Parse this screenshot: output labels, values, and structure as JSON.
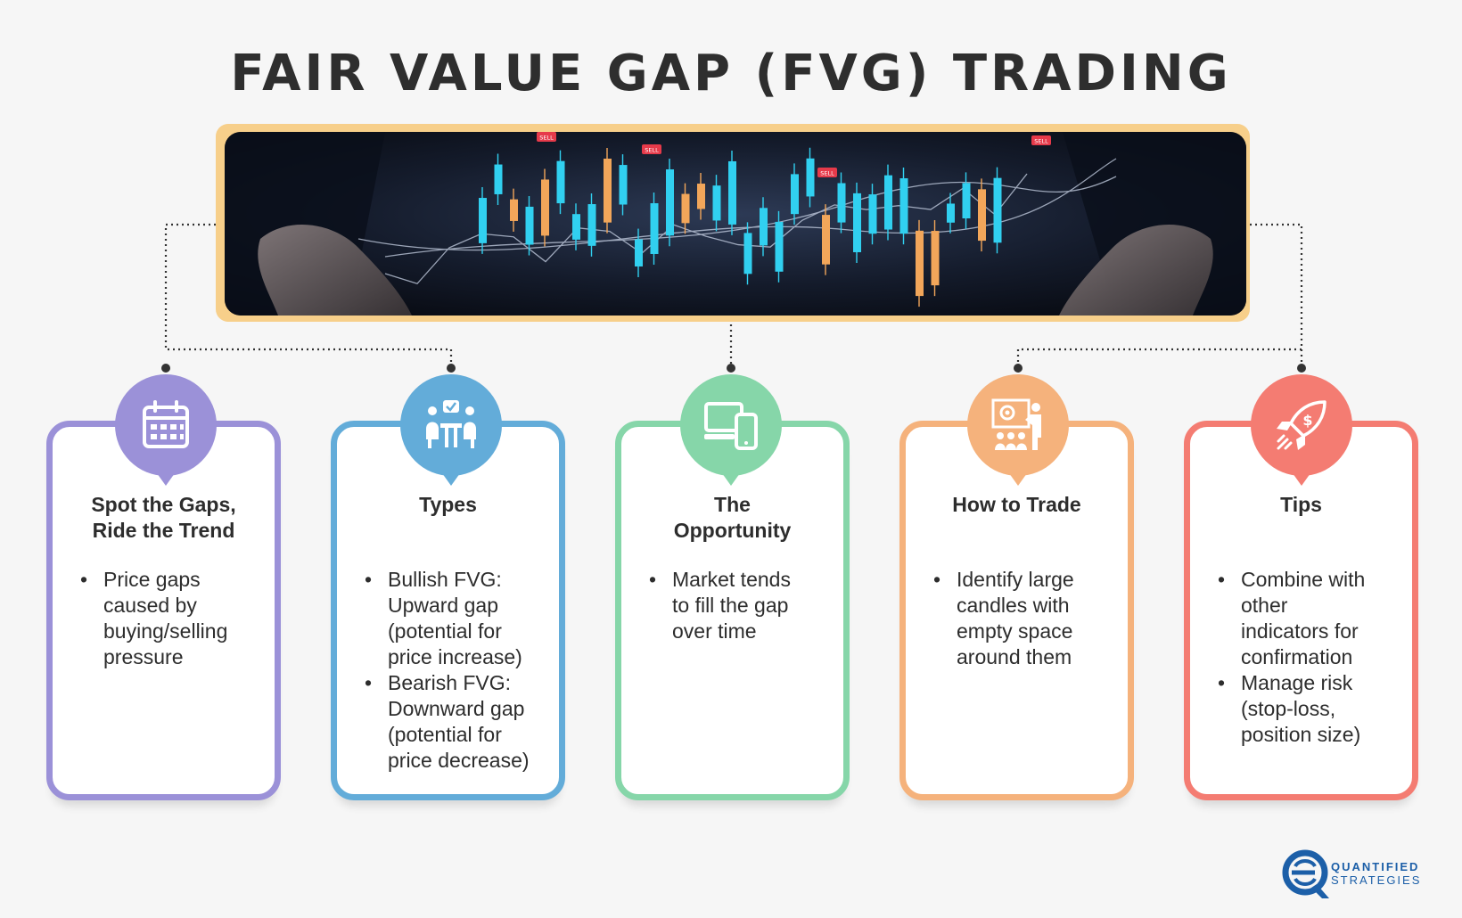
{
  "title": "FAIR VALUE GAP (FVG) TRADING",
  "banner": {
    "image": "trading-candlestick-chart-hands",
    "tags": [
      "SELL",
      "SELL",
      "SELL",
      "SELL"
    ]
  },
  "cards": [
    {
      "title": "Spot the Gaps, Ride the Trend",
      "title_lines": [
        "Spot the Gaps,",
        "Ride the Trend"
      ],
      "icon": "calendar-icon",
      "color": "#9b91d8",
      "bullets": [
        "Price gaps caused by buying/selling pressure"
      ],
      "lines": [
        [
          "Price gaps",
          "caused by",
          "buying/selling",
          "pressure"
        ]
      ]
    },
    {
      "title": "Types",
      "title_lines": [
        "Types"
      ],
      "icon": "team-meeting-icon",
      "color": "#63acd9",
      "bullets": [
        "Bullish FVG: Upward gap (potential for price increase)",
        "Bearish FVG: Downward gap (potential for price decrease)"
      ],
      "lines": [
        [
          "Bullish FVG:",
          "Upward gap",
          "(potential for",
          "price increase)"
        ],
        [
          "Bearish FVG:",
          "Downward gap",
          "(potential for",
          "price decrease)"
        ]
      ]
    },
    {
      "title": "The Opportunity",
      "title_lines": [
        "The",
        "Opportunity"
      ],
      "icon": "devices-icon",
      "color": "#86d6a9",
      "bullets": [
        "Market tends to fill the gap over time"
      ],
      "lines": [
        [
          "Market tends",
          "to fill the gap",
          "over time"
        ]
      ]
    },
    {
      "title": "How to Trade",
      "title_lines": [
        "How to Trade"
      ],
      "icon": "presentation-icon",
      "color": "#f5b27c",
      "bullets": [
        "Identify large candles with empty space around them"
      ],
      "lines": [
        [
          "Identify large",
          "candles with",
          "empty space",
          "around them"
        ]
      ]
    },
    {
      "title": "Tips",
      "title_lines": [
        "Tips"
      ],
      "icon": "rocket-icon",
      "color": "#f47c72",
      "bullets": [
        "Combine with other indicators for confirmation",
        "Manage risk (stop-loss, position size)"
      ],
      "lines": [
        [
          "Combine with",
          "other",
          "indicators for",
          "confirmation"
        ],
        [
          "Manage risk",
          "(stop-loss,",
          "position size)"
        ]
      ]
    }
  ],
  "logo": {
    "line1": "QUANTIFIED",
    "line2": "STRATEGIES",
    "color": "#1c5fa8"
  }
}
